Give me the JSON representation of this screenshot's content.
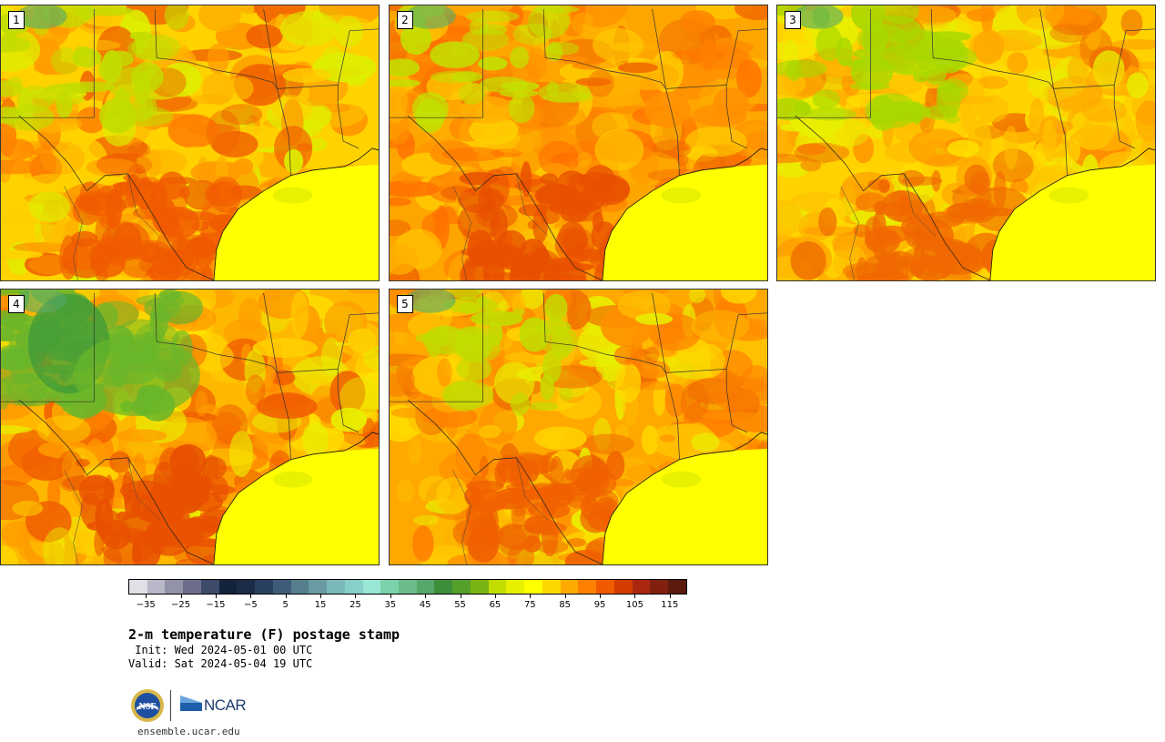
{
  "panels": [
    {
      "label": "1",
      "variant": "hot-south"
    },
    {
      "label": "2",
      "variant": "hot-center"
    },
    {
      "label": "3",
      "variant": "mild-north"
    },
    {
      "label": "4",
      "variant": "cool-northwest"
    },
    {
      "label": "5",
      "variant": "warm-mixed"
    }
  ],
  "colorbar": {
    "colors": [
      "#e0e0e6",
      "#b8b8c8",
      "#9292a8",
      "#6e6e8c",
      "#3e4a6a",
      "#14233c",
      "#1c2c48",
      "#2a4060",
      "#3e5c78",
      "#557f8c",
      "#6a9aa2",
      "#7ab8ba",
      "#86d0c8",
      "#98e6d6",
      "#7ad2aa",
      "#6abc8a",
      "#55a86a",
      "#3c8e3a",
      "#55a02a",
      "#7ab414",
      "#c2dc00",
      "#e6f000",
      "#ffff00",
      "#ffd700",
      "#ffaa00",
      "#ff8000",
      "#f05a00",
      "#d23c00",
      "#aa2810",
      "#822010",
      "#5a1a0c"
    ],
    "ticks": [
      "−35",
      "−25",
      "−15",
      "−5",
      "5",
      "15",
      "25",
      "35",
      "45",
      "55",
      "65",
      "75",
      "85",
      "95",
      "105",
      "115"
    ]
  },
  "title": "2-m temperature (F) postage stamp",
  "init": " Init: Wed 2024-05-01 00 UTC",
  "valid": "Valid: Sat 2024-05-04 19 UTC",
  "logos": {
    "ncar_text": "NCAR",
    "nsf_text": "NSF"
  },
  "website": "ensemble.ucar.edu"
}
